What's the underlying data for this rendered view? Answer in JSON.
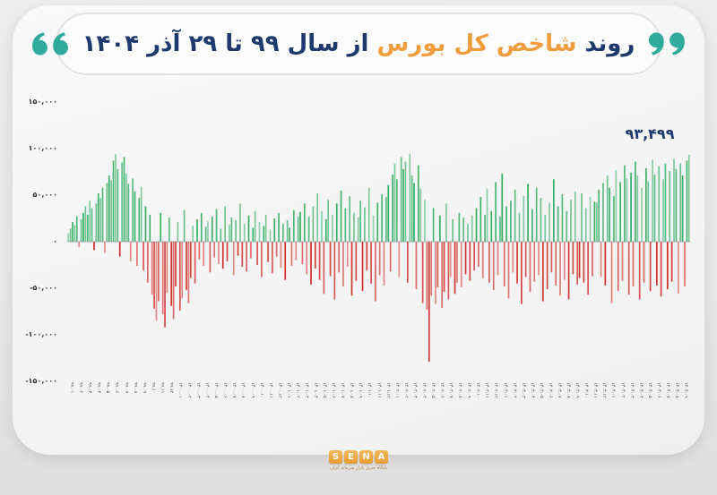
{
  "title": {
    "prefix": "روند ",
    "highlight": "شاخص کل بورس",
    "suffix": " از سال ۹۹ تا ۲۹ آذر ۱۴۰۴",
    "navy_color": "#1e3a6d",
    "highlight_color": "#ef9d3d",
    "quote_color": "#2faa9d"
  },
  "chart_data": {
    "type": "bar",
    "title": "روند شاخص کل بورس از سال ۹۹ تا ۲۹ آذر ۱۴۰۴",
    "grid": false,
    "legend": "none",
    "ylim": [
      -150000,
      150000
    ],
    "positive_color": "#2eab5f",
    "negative_color": "#cf2a27",
    "y_tick_labels": [
      "۱۵۰,۰۰۰",
      "۱۰۰,۰۰۰",
      "۵۰,۰۰۰",
      "۰",
      "-۵۰,۰۰۰",
      "-۱۰۰,۰۰۰",
      "-۱۵۰,۰۰۰"
    ],
    "y_tick_values": [
      150000,
      100000,
      50000,
      0,
      -50000,
      -100000,
      -150000
    ],
    "last_value": 93499,
    "last_value_label": "۹۳,۴۹۹",
    "x_labels": [
      "۹۹.۰۱",
      "۹۹.۰۲",
      "۹۹.۰۳",
      "۹۹.۰۴",
      "۹۹.۰۵",
      "۹۹.۰۶",
      "۹۹.۰۷",
      "۹۹.۰۸",
      "۹۹.۰۹",
      "۹۹.۱۰",
      "۹۹.۱۱",
      "۹۹.۱۲",
      "۱۴۰۰.۰۱",
      "۱۴۰۰.۰۲",
      "۱۴۰۰.۰۳",
      "۱۴۰۰.۰۴",
      "۱۴۰۰.۰۵",
      "۱۴۰۰.۰۶",
      "۱۴۰۰.۰۷",
      "۱۴۰۰.۰۸",
      "۱۴۰۰.۰۹",
      "۱۴۰۰.۱۰",
      "۱۴۰۰.۱۱",
      "۱۴۰۰.۱۲",
      "۱۴۰۱.۰۱",
      "۱۴۰۱.۰۲",
      "۱۴۰۱.۰۳",
      "۱۴۰۱.۰۴",
      "۱۴۰۱.۰۵",
      "۱۴۰۱.۰۶",
      "۱۴۰۱.۰۷",
      "۱۴۰۱.۰۸",
      "۱۴۰۱.۰۹",
      "۱۴۰۱.۱۰",
      "۱۴۰۱.۱۱",
      "۱۴۰۱.۱۲",
      "۱۴۰۲.۰۱",
      "۱۴۰۲.۰۲",
      "۱۴۰۲.۰۳",
      "۱۴۰۲.۰۴",
      "۱۴۰۲.۰۵",
      "۱۴۰۲.۰۶",
      "۱۴۰۲.۰۷",
      "۱۴۰۲.۰۸",
      "۱۴۰۲.۰۹",
      "۱۴۰۲.۱۰",
      "۱۴۰۲.۱۱",
      "۱۴۰۲.۱۲",
      "۱۴۰۳.۰۱",
      "۱۴۰۳.۰۲",
      "۱۴۰۳.۰۳",
      "۱۴۰۳.۰۴",
      "۱۴۰۳.۰۵",
      "۱۴۰۳.۰۶",
      "۱۴۰۳.۰۷",
      "۱۴۰۳.۰۸",
      "۱۴۰۳.۰۹",
      "۱۴۰۳.۱۰",
      "۱۴۰۳.۱۱",
      "۱۴۰۳.۱۲",
      "۱۴۰۴.۰۱",
      "۱۴۰۴.۰۲",
      "۱۴۰۴.۰۳",
      "۱۴۰۴.۰۴",
      "۱۴۰۴.۰۵",
      "۱۴۰۴.۰۶",
      "۱۴۰۴.۰۷",
      "۱۴۰۴.۰۸",
      "۱۴۰۴.۰۹"
    ],
    "values": [
      9000,
      14000,
      21000,
      18000,
      27000,
      -6000,
      24000,
      31000,
      38000,
      29000,
      44000,
      36000,
      -9000,
      41000,
      52000,
      47000,
      58000,
      -12000,
      63000,
      71000,
      66000,
      87000,
      94000,
      78000,
      -16000,
      85000,
      91000,
      73000,
      62000,
      -21000,
      68000,
      54000,
      -26000,
      47000,
      59000,
      -31000,
      38000,
      -44000,
      29000,
      -57000,
      -72000,
      -85000,
      -64000,
      31000,
      -78000,
      -92000,
      -55000,
      26000,
      -69000,
      -83000,
      -48000,
      21000,
      -74000,
      -61000,
      34000,
      -52000,
      -66000,
      -39000,
      17000,
      -45000,
      24000,
      -19000,
      31000,
      -26000,
      16000,
      22000,
      -33000,
      27000,
      -17000,
      35000,
      -24000,
      14000,
      -29000,
      38000,
      -21000,
      18000,
      26000,
      -36000,
      23000,
      -15000,
      41000,
      -27000,
      19000,
      -32000,
      28000,
      -18000,
      15000,
      33000,
      -25000,
      21000,
      -38000,
      17000,
      29000,
      -22000,
      13000,
      -34000,
      25000,
      -16000,
      31000,
      -28000,
      19000,
      -41000,
      23000,
      15000,
      -26000,
      34000,
      -20000,
      27000,
      32000,
      -24000,
      41000,
      -35000,
      27000,
      -46000,
      38000,
      -29000,
      52000,
      -41000,
      33000,
      -56000,
      24000,
      45000,
      -37000,
      29000,
      -62000,
      41000,
      -33000,
      55000,
      -48000,
      36000,
      -27000,
      49000,
      -58000,
      31000,
      -42000,
      26000,
      44000,
      -53000,
      37000,
      -31000,
      58000,
      -45000,
      28000,
      -64000,
      42000,
      -36000,
      51000,
      -47000,
      48000,
      61000,
      -32000,
      72000,
      84000,
      67000,
      -38000,
      91000,
      78000,
      86000,
      -44000,
      94000,
      71000,
      63000,
      -51000,
      82000,
      57000,
      -66000,
      45000,
      -73000,
      -129000,
      -58000,
      36000,
      -67000,
      -49000,
      28000,
      -71000,
      -54000,
      41000,
      -62000,
      -38000,
      24000,
      -56000,
      -44000,
      31000,
      -49000,
      26000,
      -35000,
      19000,
      -42000,
      28000,
      -31000,
      36000,
      -27000,
      48000,
      -39000,
      29000,
      57000,
      -44000,
      33000,
      -52000,
      64000,
      -36000,
      27000,
      73000,
      -48000,
      38000,
      -61000,
      44000,
      -33000,
      56000,
      -45000,
      31000,
      -67000,
      49000,
      -38000,
      62000,
      -54000,
      35000,
      -43000,
      58000,
      -36000,
      47000,
      -64000,
      29000,
      -51000,
      42000,
      -33000,
      67000,
      -47000,
      38000,
      -58000,
      51000,
      -41000,
      33000,
      -62000,
      45000,
      -35000,
      54000,
      -46000,
      -39000,
      52000,
      -44000,
      36000,
      -57000,
      48000,
      -37000,
      43000,
      42000,
      56000,
      -38000,
      63000,
      -47000,
      71000,
      58000,
      -66000,
      49000,
      77000,
      -53000,
      64000,
      -42000,
      82000,
      68000,
      -57000,
      74000,
      -48000,
      86000,
      71000,
      -62000,
      58000,
      -44000,
      79000,
      65000,
      -53000,
      88000,
      72000,
      -47000,
      81000,
      -59000,
      67000,
      84000,
      -51000,
      76000,
      -43000,
      89000,
      78000,
      -56000,
      84000,
      71000,
      -48000,
      87000,
      93499
    ]
  },
  "footer": {
    "logo_letters": [
      "S",
      "E",
      "N",
      "A"
    ],
    "logo_caption": "پایگاه خبری بازار سرمایه ایران",
    "logo_color": "#eda63f"
  }
}
